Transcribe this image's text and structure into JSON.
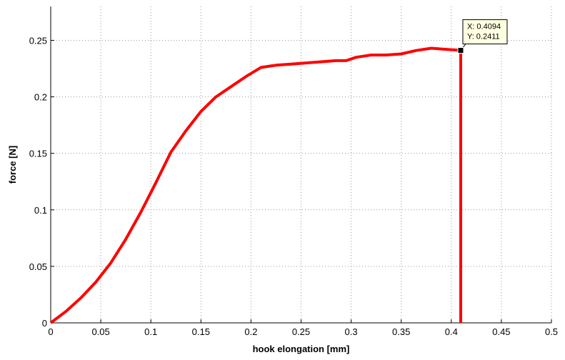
{
  "chart_data": {
    "type": "line",
    "title": "",
    "xlabel": "hook elongation [mm]",
    "ylabel": "force [N]",
    "xlim": [
      0,
      0.5
    ],
    "ylim": [
      0,
      0.28
    ],
    "x_ticks": [
      0,
      0.05,
      0.1,
      0.15,
      0.2,
      0.25,
      0.3,
      0.35,
      0.4,
      0.45,
      0.5
    ],
    "x_tick_labels": [
      "0",
      "0.05",
      "0.1",
      "0.15",
      "0.2",
      "0.25",
      "0.3",
      "0.35",
      "0.4",
      "0.45",
      "0.5"
    ],
    "y_ticks": [
      0,
      0.05,
      0.1,
      0.15,
      0.2,
      0.25
    ],
    "y_tick_labels": [
      "0",
      "0.05",
      "0.1",
      "0.15",
      "0.2",
      "0.25"
    ],
    "grid": true,
    "grid_style": "dotted",
    "series": [
      {
        "color": "#ff0000",
        "x": [
          0,
          0.015,
          0.03,
          0.045,
          0.06,
          0.075,
          0.09,
          0.105,
          0.12,
          0.135,
          0.15,
          0.165,
          0.18,
          0.195,
          0.21,
          0.225,
          0.24,
          0.255,
          0.27,
          0.285,
          0.295,
          0.305,
          0.32,
          0.335,
          0.35,
          0.365,
          0.38,
          0.395,
          0.4094,
          0.4094
        ],
        "y": [
          0,
          0.01,
          0.022,
          0.036,
          0.053,
          0.074,
          0.098,
          0.124,
          0.151,
          0.17,
          0.187,
          0.2,
          0.209,
          0.218,
          0.226,
          0.228,
          0.229,
          0.23,
          0.231,
          0.232,
          0.232,
          0.235,
          0.237,
          0.237,
          0.238,
          0.241,
          0.243,
          0.242,
          0.2411,
          0
        ]
      }
    ],
    "annotation": {
      "x": 0.4094,
      "y": 0.2411,
      "label_x": "X: 0.4094",
      "label_y": "Y: 0.2411",
      "marker_color": "#000000",
      "box_fill": "#ffffe1"
    }
  }
}
